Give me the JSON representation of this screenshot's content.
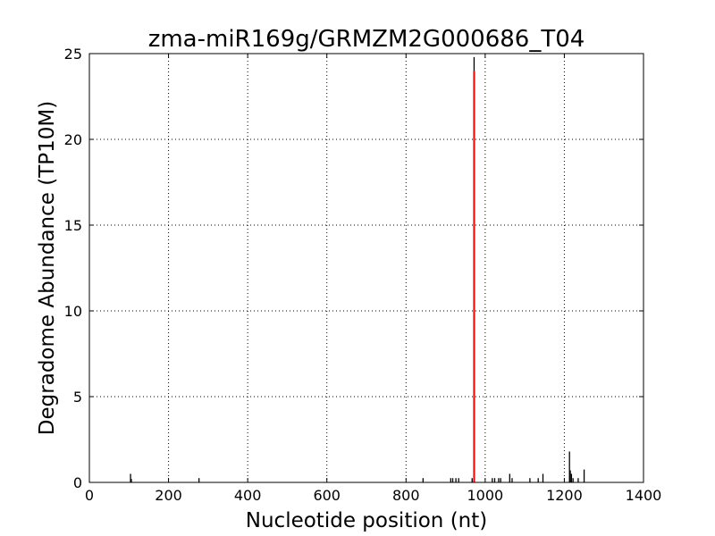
{
  "chart_data": {
    "type": "bar",
    "title": "zma-miR169g/GRMZM2G000686_T04",
    "xlabel": "Nucleotide position (nt)",
    "ylabel": "Degradome Abundance (TP10M)",
    "xlim": [
      0,
      1400
    ],
    "ylim": [
      0,
      25
    ],
    "xticks": [
      0,
      200,
      400,
      600,
      800,
      1000,
      1200,
      1400
    ],
    "yticks": [
      0,
      5,
      10,
      15,
      20,
      25
    ],
    "grid": true,
    "series": [
      {
        "color": "#000000",
        "points": [
          {
            "x": 104,
            "y": 0.5
          },
          {
            "x": 106,
            "y": 0.2
          },
          {
            "x": 277,
            "y": 0.25
          },
          {
            "x": 843,
            "y": 0.25
          },
          {
            "x": 913,
            "y": 0.25
          },
          {
            "x": 918,
            "y": 0.25
          },
          {
            "x": 926,
            "y": 0.25
          },
          {
            "x": 933,
            "y": 0.25
          },
          {
            "x": 967,
            "y": 0.25
          },
          {
            "x": 972,
            "y": 24.8
          },
          {
            "x": 1018,
            "y": 0.25
          },
          {
            "x": 1024,
            "y": 0.25
          },
          {
            "x": 1034,
            "y": 0.25
          },
          {
            "x": 1039,
            "y": 0.25
          },
          {
            "x": 1062,
            "y": 0.5
          },
          {
            "x": 1068,
            "y": 0.25
          },
          {
            "x": 1113,
            "y": 0.25
          },
          {
            "x": 1134,
            "y": 0.25
          },
          {
            "x": 1146,
            "y": 0.5
          },
          {
            "x": 1213,
            "y": 1.8
          },
          {
            "x": 1215,
            "y": 0.7
          },
          {
            "x": 1218,
            "y": 0.5
          },
          {
            "x": 1222,
            "y": 0.25
          },
          {
            "x": 1235,
            "y": 0.25
          },
          {
            "x": 1250,
            "y": 0.75
          }
        ]
      },
      {
        "color": "#ff0000",
        "points": [
          {
            "x": 972,
            "y": 24.0
          }
        ]
      }
    ]
  }
}
